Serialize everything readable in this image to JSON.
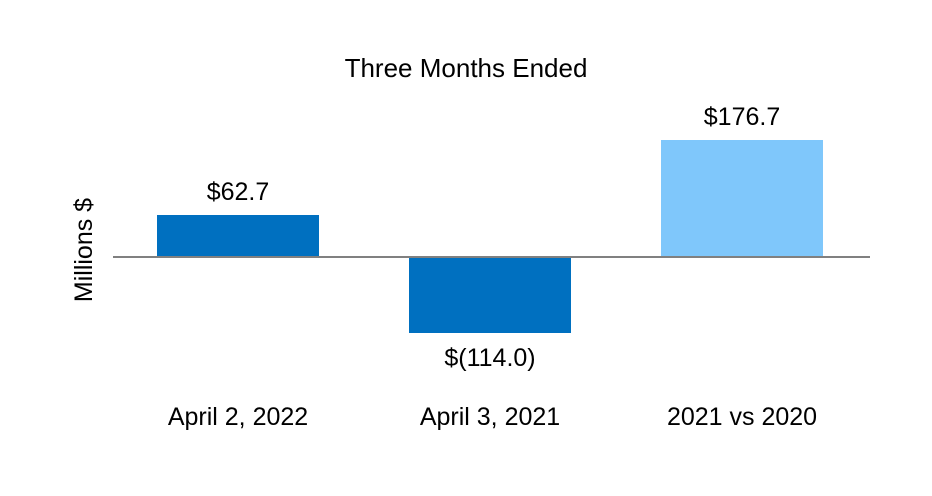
{
  "chart_data": {
    "type": "bar",
    "title": "Three Months Ended",
    "xlabel": "",
    "ylabel": "Millions $",
    "categories": [
      "April 2, 2022",
      "April 3, 2021",
      "2021 vs 2020"
    ],
    "values": [
      62.7,
      -114.0,
      176.7
    ],
    "value_labels": [
      "$62.7",
      "$(114.0)",
      "$176.7"
    ],
    "bar_colors": [
      "#0070C0",
      "#0070C0",
      "#7FC7FB"
    ],
    "axis_color": "#808080",
    "background_color": "#FFFFFF",
    "text_color": "#000000",
    "ylim": [
      -150,
      220
    ],
    "grid": false,
    "legend": "none",
    "data_label_position": "outside-end"
  }
}
